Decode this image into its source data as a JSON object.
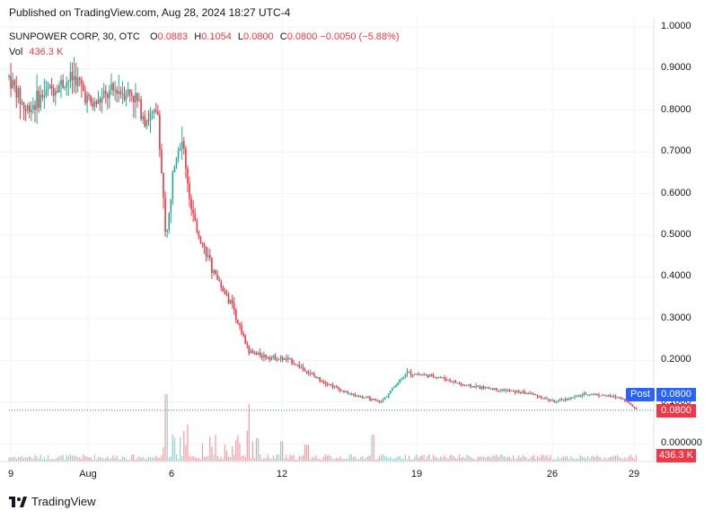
{
  "header": {
    "published": "Published on TradingView.com, Aug 28, 2024 18:27 UTC-4"
  },
  "legend": {
    "symbol": "SUNPOWER CORP, 30, OTC",
    "o_key": "O",
    "o_val": "0.0883",
    "h_key": "H",
    "h_val": "0.1054",
    "l_key": "L",
    "l_val": "0.0800",
    "c_key": "C",
    "c_val": "0.0800",
    "change": "−0.0050 (−5.88%)",
    "vol_key": "Vol",
    "vol_val": "436.3 K"
  },
  "badges": {
    "post_label": "Post",
    "post_price": "0.0800",
    "last_price": "0.0800",
    "volume": "436.3 K"
  },
  "footer": {
    "brand": "TradingView"
  },
  "colors": {
    "up": "#22ab94",
    "down": "#f23645",
    "post": "#2962ff",
    "grid": "#f0f3fa"
  },
  "chart_data": {
    "type": "candlestick",
    "title": "SUNPOWER CORP, 30, OTC",
    "price_ticks": [
      "1.0000",
      "0.9000",
      "0.8000",
      "0.7000",
      "0.6000",
      "0.5000",
      "0.4000",
      "0.3000",
      "0.2000",
      "0.1000",
      "0.000000"
    ],
    "date_ticks": [
      "9",
      "Aug",
      "6",
      "12",
      "19",
      "26",
      "29"
    ],
    "ylim": [
      0,
      1.0
    ],
    "close_path": [
      {
        "t": 0,
        "v": 0.88
      },
      {
        "t": 4,
        "v": 0.8
      },
      {
        "t": 10,
        "v": 0.85
      },
      {
        "t": 16,
        "v": 0.88
      },
      {
        "t": 20,
        "v": 0.81
      },
      {
        "t": 26,
        "v": 0.85
      },
      {
        "t": 30,
        "v": 0.84
      },
      {
        "t": 33,
        "v": 0.78
      },
      {
        "t": 36,
        "v": 0.79
      },
      {
        "t": 38,
        "v": 0.48
      },
      {
        "t": 40,
        "v": 0.68
      },
      {
        "t": 42,
        "v": 0.74
      },
      {
        "t": 44,
        "v": 0.56
      },
      {
        "t": 46,
        "v": 0.5
      },
      {
        "t": 50,
        "v": 0.4
      },
      {
        "t": 54,
        "v": 0.33
      },
      {
        "t": 58,
        "v": 0.22
      },
      {
        "t": 62,
        "v": 0.21
      },
      {
        "t": 68,
        "v": 0.2
      },
      {
        "t": 74,
        "v": 0.16
      },
      {
        "t": 82,
        "v": 0.12
      },
      {
        "t": 90,
        "v": 0.1
      },
      {
        "t": 96,
        "v": 0.17
      },
      {
        "t": 104,
        "v": 0.16
      },
      {
        "t": 110,
        "v": 0.14
      },
      {
        "t": 118,
        "v": 0.13
      },
      {
        "t": 126,
        "v": 0.12
      },
      {
        "t": 132,
        "v": 0.1
      },
      {
        "t": 140,
        "v": 0.12
      },
      {
        "t": 148,
        "v": 0.11
      },
      {
        "t": 152,
        "v": 0.08
      }
    ],
    "volume_spikes": [
      {
        "t": 38,
        "v": 1.0
      },
      {
        "t": 40,
        "v": 0.4
      },
      {
        "t": 43,
        "v": 0.55
      },
      {
        "t": 58,
        "v": 0.85
      },
      {
        "t": 60,
        "v": 0.35
      },
      {
        "t": 66,
        "v": 0.3
      },
      {
        "t": 72,
        "v": 0.25
      },
      {
        "t": 88,
        "v": 0.4
      }
    ],
    "last": 0.08,
    "post": 0.08,
    "volume_last": "436.3 K"
  }
}
